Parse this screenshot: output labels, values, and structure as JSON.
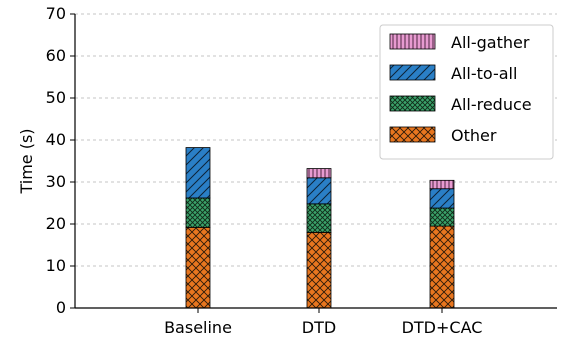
{
  "chart_data": {
    "type": "bar",
    "stacked": true,
    "categories": [
      "Baseline",
      "DTD",
      "DTD+CAC"
    ],
    "series": [
      {
        "name": "Other",
        "values": [
          19.2,
          18.0,
          19.5
        ],
        "color": "#e8761f"
      },
      {
        "name": "All-reduce",
        "values": [
          7.0,
          6.8,
          4.3
        ],
        "color": "#3aa26a"
      },
      {
        "name": "All-to-all",
        "values": [
          12.0,
          6.2,
          4.6
        ],
        "color": "#2a7fc6"
      },
      {
        "name": "All-gather",
        "values": [
          0,
          2.2,
          2.0
        ],
        "color": "#e79ad0"
      }
    ],
    "xlabel": "",
    "ylabel": "Time (s)",
    "ylim": [
      0,
      70
    ],
    "yticks": [
      0,
      10,
      20,
      30,
      40,
      50,
      60,
      70
    ],
    "grid": "y-dashed",
    "legend_position": "top-right",
    "legend_order": [
      "All-gather",
      "All-to-all",
      "All-reduce",
      "Other"
    ]
  }
}
